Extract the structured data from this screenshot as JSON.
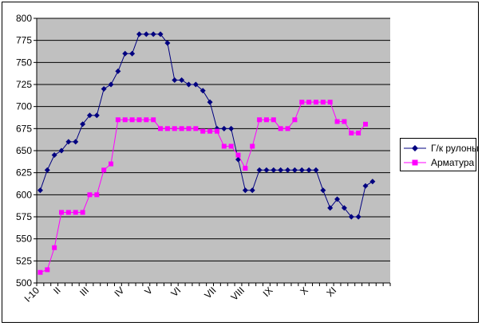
{
  "chart_data": {
    "type": "line",
    "ylim": [
      500,
      800
    ],
    "ystep": 25,
    "y_ticks": [
      "500",
      "525",
      "550",
      "575",
      "600",
      "625",
      "650",
      "675",
      "700",
      "725",
      "750",
      "775",
      "800"
    ],
    "x_labels": [
      {
        "label": "I-10",
        "index": 0
      },
      {
        "label": "II",
        "index": 3
      },
      {
        "label": "III",
        "index": 7
      },
      {
        "label": "IV",
        "index": 12
      },
      {
        "label": "V",
        "index": 16
      },
      {
        "label": "VI",
        "index": 20
      },
      {
        "label": "VII",
        "index": 25
      },
      {
        "label": "VIII",
        "index": 29
      },
      {
        "label": "IX",
        "index": 33
      },
      {
        "label": "X",
        "index": 38
      },
      {
        "label": "XI",
        "index": 42
      }
    ],
    "num_points": 50,
    "grid": true,
    "plot_background": "#c0c0c0",
    "legend_position": "right",
    "series": [
      {
        "name": "Г/к рулоны",
        "color": "#000080",
        "marker": "diamond",
        "values": [
          605,
          628,
          645,
          650,
          660,
          660,
          680,
          690,
          690,
          720,
          725,
          740,
          760,
          760,
          782,
          782,
          782,
          782,
          772,
          730,
          730,
          725,
          725,
          718,
          705,
          675,
          675,
          675,
          640,
          605,
          605,
          628,
          628,
          628,
          628,
          628,
          628,
          628,
          628,
          628,
          605,
          585,
          595,
          585,
          575,
          575,
          610,
          615
        ]
      },
      {
        "name": "Арматура",
        "color": "#ff00ff",
        "marker": "square",
        "values": [
          512,
          515,
          540,
          580,
          580,
          580,
          580,
          600,
          600,
          628,
          635,
          685,
          685,
          685,
          685,
          685,
          685,
          675,
          675,
          675,
          675,
          675,
          675,
          672,
          672,
          672,
          655,
          655,
          645,
          630,
          655,
          685,
          685,
          685,
          675,
          675,
          685,
          705,
          705,
          705,
          705,
          705,
          683,
          683,
          670,
          670,
          680
        ]
      }
    ]
  }
}
